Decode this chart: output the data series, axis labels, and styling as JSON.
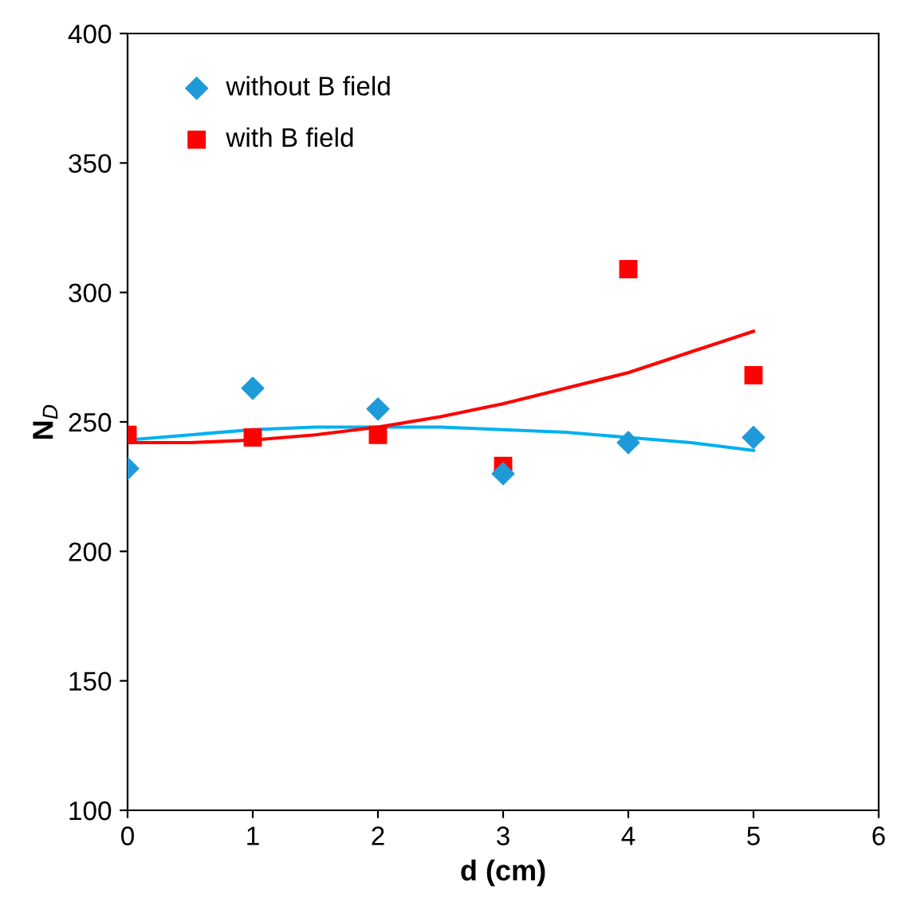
{
  "chart_data": {
    "type": "scatter",
    "xlabel": "d (cm)",
    "ylabel": "N$_{D}$",
    "xlim": [
      0,
      6
    ],
    "xticks": [
      0,
      1,
      2,
      3,
      4,
      5,
      6
    ],
    "ylim": [
      100,
      400
    ],
    "yticks": [
      100,
      150,
      200,
      250,
      300,
      350,
      400
    ],
    "grid": false,
    "legend": "top left",
    "series": [
      {
        "name": "without B field",
        "color": "#1f9ad9",
        "marker": "diamond",
        "x": [
          0,
          1,
          2,
          3,
          4,
          5
        ],
        "values": [
          232,
          263,
          255,
          230,
          242,
          244
        ]
      },
      {
        "name": "with B field",
        "color": "#ff0000",
        "marker": "square",
        "x": [
          0,
          1,
          2,
          3,
          4,
          5
        ],
        "values": [
          245,
          244,
          245,
          233,
          309,
          268
        ]
      },
      {
        "type": "line",
        "color": "#00b0f0",
        "marker": "none",
        "x": [
          0,
          0.5,
          1,
          1.5,
          2,
          2.5,
          3,
          3.5,
          4,
          4.5,
          5
        ],
        "values": [
          243,
          245,
          247,
          248,
          248,
          248,
          247,
          246,
          244,
          242,
          239
        ]
      },
      {
        "type": "line",
        "color": "#ff0000",
        "marker": "none",
        "x": [
          0,
          0.5,
          1,
          1.5,
          2,
          2.5,
          3,
          3.5,
          4,
          4.5,
          5
        ],
        "values": [
          242,
          242,
          243,
          245,
          248,
          252,
          257,
          263,
          269,
          277,
          285
        ]
      }
    ]
  }
}
